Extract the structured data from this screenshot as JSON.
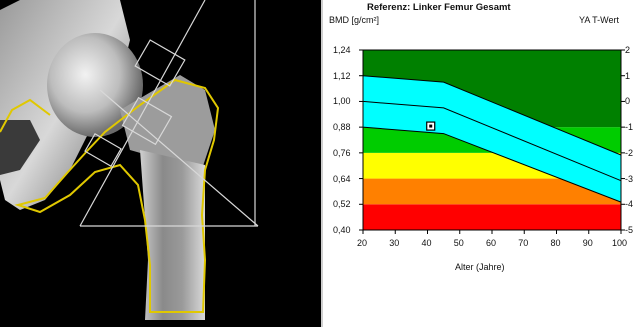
{
  "scan": {},
  "chart_data": {
    "type": "area",
    "title": "Referenz: Linker Femur Gesamt",
    "ylabel": "BMD [g/cm²]",
    "ylabel_right": "YA T-Wert",
    "xlabel": "Alter (Jahre)",
    "xlim": [
      20,
      100
    ],
    "ylim": [
      0.4,
      1.24
    ],
    "x_ticks": [
      "20",
      "30",
      "40",
      "50",
      "60",
      "70",
      "80",
      "90",
      "100"
    ],
    "y_ticks": [
      "1,24",
      "1,12",
      "1,00",
      "0,88",
      "0,76",
      "0,64",
      "0,52",
      "0,40"
    ],
    "y_tick_values": [
      1.24,
      1.12,
      1.0,
      0.88,
      0.76,
      0.64,
      0.52,
      0.4
    ],
    "right_ticks": [
      "2",
      "1",
      "0",
      "-1",
      "-2",
      "-3",
      "-4",
      "-5"
    ],
    "zones": [
      {
        "from": 0.4,
        "to": 0.52,
        "color": "#ff0000"
      },
      {
        "from": 0.52,
        "to": 0.64,
        "color": "#ff8000"
      },
      {
        "from": 0.64,
        "to": 0.76,
        "color": "#ffff00"
      },
      {
        "from": 0.76,
        "to": 0.88,
        "color": "#00cc00"
      },
      {
        "from": 0.88,
        "to": 1.24,
        "color": "#008000"
      }
    ],
    "reference_band": {
      "x": [
        20,
        45,
        100
      ],
      "upper": [
        1.12,
        1.09,
        0.75
      ],
      "mean": [
        1.0,
        0.97,
        0.63
      ],
      "lower": [
        0.88,
        0.85,
        0.53
      ],
      "color": "#00ffff"
    },
    "patient_point": {
      "x": 41,
      "y": 0.885
    }
  }
}
